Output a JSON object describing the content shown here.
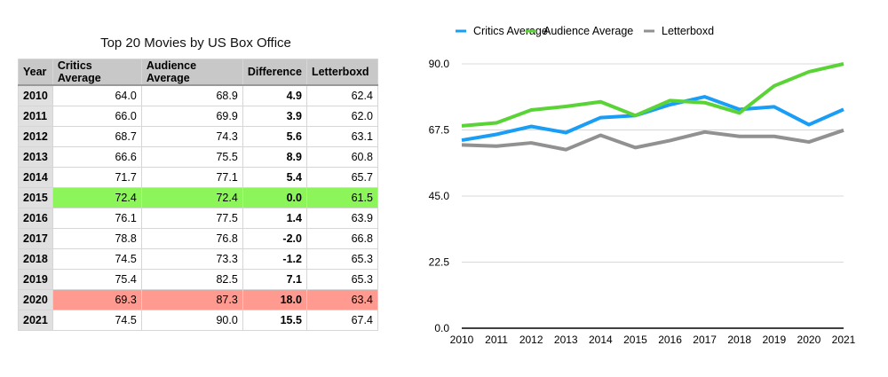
{
  "table": {
    "title": "Top 20 Movies by US Box Office",
    "headers": [
      "Year",
      "Critics Average",
      "Audience Average",
      "Difference",
      "Letterboxd"
    ],
    "rows": [
      [
        "2010",
        "64.0",
        "68.9",
        "4.9",
        "62.4"
      ],
      [
        "2011",
        "66.0",
        "69.9",
        "3.9",
        "62.0"
      ],
      [
        "2012",
        "68.7",
        "74.3",
        "5.6",
        "63.1"
      ],
      [
        "2013",
        "66.6",
        "75.5",
        "8.9",
        "60.8"
      ],
      [
        "2014",
        "71.7",
        "77.1",
        "5.4",
        "65.7"
      ],
      [
        "2015",
        "72.4",
        "72.4",
        "0.0",
        "61.5"
      ],
      [
        "2016",
        "76.1",
        "77.5",
        "1.4",
        "63.9"
      ],
      [
        "2017",
        "78.8",
        "76.8",
        "-2.0",
        "66.8"
      ],
      [
        "2018",
        "74.5",
        "73.3",
        "-1.2",
        "65.3"
      ],
      [
        "2019",
        "75.4",
        "82.5",
        "7.1",
        "65.3"
      ],
      [
        "2020",
        "69.3",
        "87.3",
        "18.0",
        "63.4"
      ],
      [
        "2021",
        "74.5",
        "90.0",
        "15.5",
        "67.4"
      ]
    ],
    "highlights": {
      "2015": "#8cf55a",
      "2020": "#ff9a90"
    }
  },
  "chart_data": {
    "type": "line",
    "x": [
      2010,
      2011,
      2012,
      2013,
      2014,
      2015,
      2016,
      2017,
      2018,
      2019,
      2020,
      2021
    ],
    "ylim": [
      0,
      90
    ],
    "yticks": [
      "0.0",
      "22.5",
      "45.0",
      "67.5",
      "90.0"
    ],
    "grid": true,
    "legend": "top",
    "series": [
      {
        "name": "Critics Average",
        "color": "#1a9ef5",
        "values": [
          64.0,
          66.0,
          68.7,
          66.6,
          71.7,
          72.4,
          76.1,
          78.8,
          74.5,
          75.4,
          69.3,
          74.5
        ]
      },
      {
        "name": "Audience Average",
        "color": "#5ad337",
        "values": [
          68.9,
          69.9,
          74.3,
          75.5,
          77.1,
          72.4,
          77.5,
          76.8,
          73.3,
          82.5,
          87.3,
          90.0
        ]
      },
      {
        "name": "Letterboxd",
        "color": "#919191",
        "values": [
          62.4,
          62.0,
          63.1,
          60.8,
          65.7,
          61.5,
          63.9,
          66.8,
          65.3,
          65.3,
          63.4,
          67.4
        ]
      }
    ]
  }
}
